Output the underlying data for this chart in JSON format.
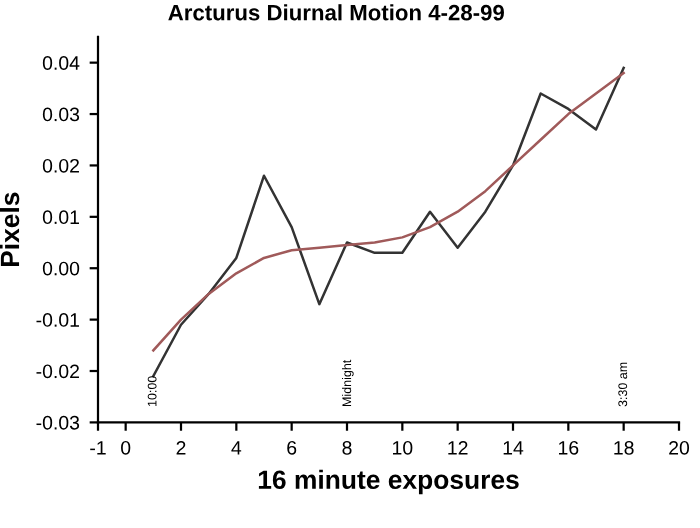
{
  "chart_data": {
    "type": "line",
    "title": "Arcturus Diurnal Motion 4-28-99",
    "xlabel": "16 minute exposures",
    "ylabel": "Pixels",
    "series": [
      {
        "x": [
          1,
          2,
          3,
          4,
          5,
          6,
          7,
          8,
          9,
          10,
          11,
          12,
          13,
          14,
          15,
          16,
          17,
          18
        ],
        "values": [
          -0.021,
          -0.011,
          -0.005,
          0.002,
          0.018,
          0.008,
          -0.007,
          0.005,
          0.003,
          0.003,
          0.011,
          0.004,
          0.011,
          0.02,
          0.034,
          0.031,
          0.027,
          0.039
        ],
        "color": "#333333"
      },
      {
        "x": [
          1,
          2,
          3,
          4,
          5,
          6,
          7,
          8,
          9,
          10,
          11,
          12,
          13,
          14,
          15,
          16,
          17,
          18
        ],
        "values": [
          -0.016,
          -0.01,
          -0.005,
          -0.001,
          0.002,
          0.0035,
          0.004,
          0.0045,
          0.005,
          0.006,
          0.008,
          0.011,
          0.015,
          0.02,
          0.025,
          0.03,
          0.034,
          0.038
        ],
        "color": "#a05a5a"
      }
    ],
    "annotations": [
      "10:00",
      "Midnight",
      "3:30 am"
    ],
    "xlim": [
      -1,
      20
    ],
    "xticks": [
      -1,
      0,
      2,
      4,
      6,
      8,
      10,
      12,
      14,
      16,
      18,
      20
    ],
    "ylim": [
      -0.03,
      0.045
    ],
    "yticks": [
      {
        "value": -0.03,
        "label": "-0.03"
      },
      {
        "value": -0.02,
        "label": "-0.02"
      },
      {
        "value": -0.01,
        "label": "-0.01"
      },
      {
        "value": 0,
        "label": "0.00"
      },
      {
        "value": 0.01,
        "label": "0.01"
      },
      {
        "value": 0.02,
        "label": "0.02"
      },
      {
        "value": 0.03,
        "label": "0.03"
      },
      {
        "value": 0.04,
        "label": "0.04"
      }
    ],
    "grid": false,
    "legend": false,
    "marker": "none",
    "line_style": "solid"
  }
}
